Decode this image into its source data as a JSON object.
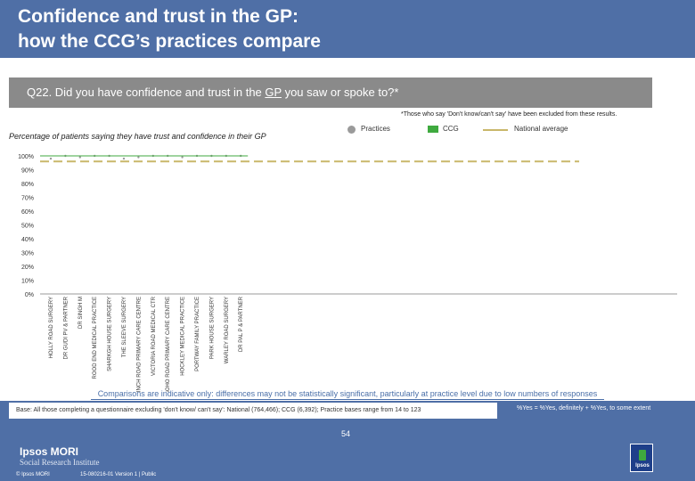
{
  "header": {
    "title_line1": "Confidence and trust in the GP:",
    "title_line2": "how the CCG’s practices compare"
  },
  "question": {
    "prefix": "Q22. Did you have confidence and trust in the ",
    "underlined": "GP",
    "suffix": " you saw or spoke to?*"
  },
  "footnote_top": "*Those who say 'Don't know/can't say' have been excluded from these results.",
  "legend": {
    "practices": "Practices",
    "ccg": "CCG",
    "national": "National average"
  },
  "colors": {
    "header_bg": "#4f6fa6",
    "question_bg": "#8a8a8a",
    "practices": "#9a9a9a",
    "ccg": "#3faa3f",
    "national": "#c9b76a",
    "note_text": "#4a6fa8"
  },
  "chart_data": {
    "type": "bar",
    "ylabel": "Percentage of patients saying they have trust and confidence in their GP",
    "ylim": [
      0,
      100
    ],
    "y_ticks": [
      "0%",
      "10%",
      "20%",
      "30%",
      "40%",
      "50%",
      "60%",
      "70%",
      "80%",
      "90%",
      "100%"
    ],
    "categories": [
      "HOLLY ROAD SURGERY",
      "DR GUDI PV & PARTNER",
      "DR SINGH M",
      "ROOD END MEDICAL PRACTICE",
      "SHARKGH HOUSE SURGERY",
      "THE SLEEVE SURGERY",
      "FINCH ROAD PRIMARY CARE CENTRE",
      "VICTORIA ROAD MEDICAL CTR",
      "SOHO ROAD PRIMARY CARE CENTRE",
      "HOCKLEY MEDICAL PRACTICE",
      "PORTWAY FAMILY PRACTICE",
      "PARK HOUSE SURGERY",
      "WARLEY ROAD SURGERY",
      "DR PAL P & PARTNER"
    ],
    "series": [
      {
        "name": "Practices",
        "values": [
          98,
          100,
          99,
          100,
          100,
          98,
          99,
          100,
          100,
          99,
          100,
          100,
          100,
          100
        ]
      }
    ],
    "ccg_value": 100,
    "national_average": 96,
    "grid": false,
    "legend_position": "top-right"
  },
  "notes": {
    "comparison": "Comparisons are indicative only: differences may not be statistically significant, particularly at practice level due to low numbers of responses",
    "base": "Base: All those completing a questionnaire excluding 'don't know/ can't say': National (764,466); CCG (6,392); Practice bases range from 14 to 123",
    "yes_definition": "%Yes = %Yes, definitely + %Yes, to some extent"
  },
  "footer": {
    "logo_line1": "Ipsos MORI",
    "logo_line2": "Social Research Institute",
    "page_number": "54",
    "copyright": "© Ipsos MORI",
    "version": "15-080216-01 Version 1 | Public",
    "ipsos_word": "Ipsos"
  }
}
